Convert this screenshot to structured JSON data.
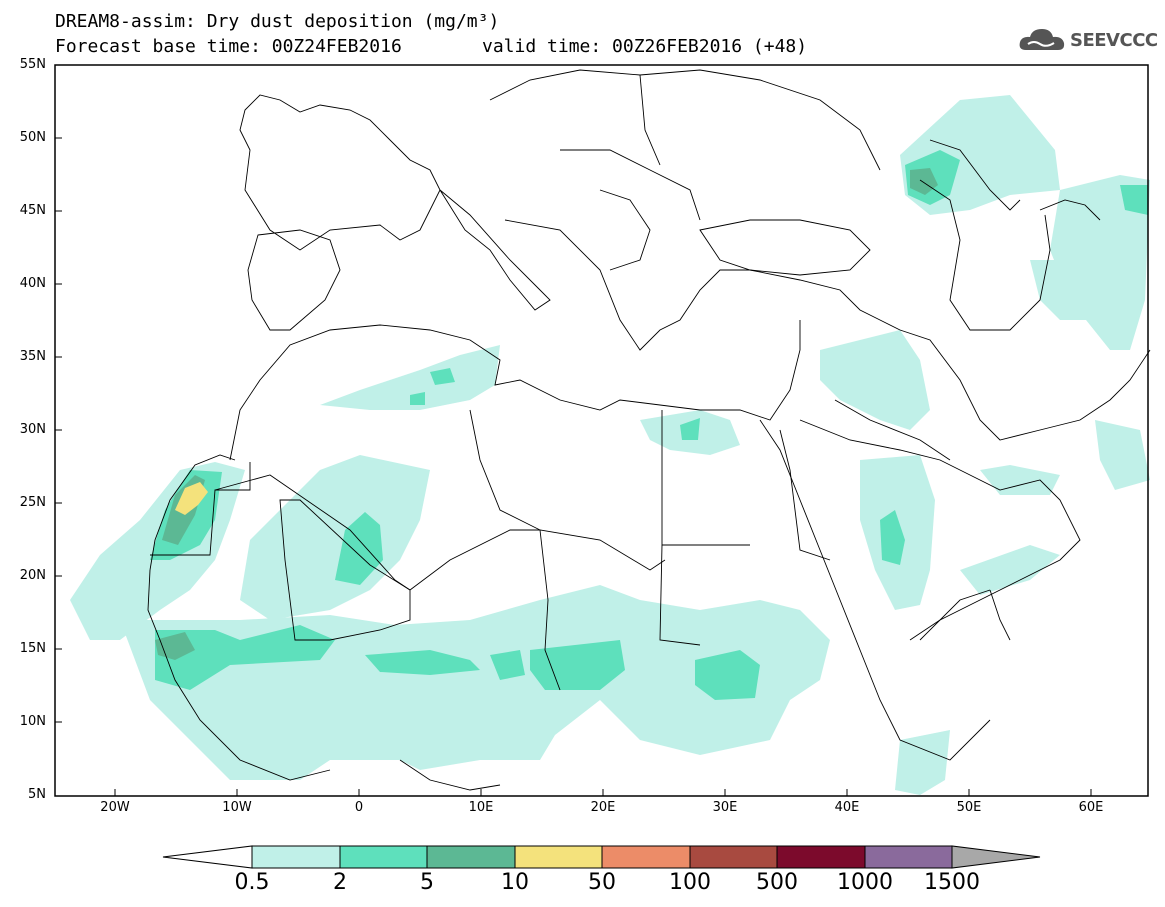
{
  "header": {
    "title_line1": "DREAM8-assim: Dry dust deposition (mg/m³)",
    "title_line2_base": "Forecast base time: 00Z24FEB2016",
    "title_line2_valid": "valid time: 00Z26FEB2016 (+48)"
  },
  "logo": {
    "text": "SEEVCCC",
    "icon": "cloud-icon"
  },
  "axes": {
    "lat_labels": [
      "55N",
      "50N",
      "45N",
      "40N",
      "35N",
      "30N",
      "25N",
      "20N",
      "15N",
      "10N",
      "5N"
    ],
    "lon_labels": [
      "20W",
      "10W",
      "0",
      "10E",
      "20E",
      "30E",
      "40E",
      "50E",
      "60E"
    ]
  },
  "colorbar": {
    "labels": [
      "0.5",
      "2",
      "5",
      "10",
      "50",
      "100",
      "500",
      "1000",
      "1500"
    ],
    "colors": [
      "#c0f0e8",
      "#5ee0bc",
      "#5cb894",
      "#f4e27c",
      "#ec8c68",
      "#a84a40",
      "#7c0a2c",
      "#8a6a9c",
      "#a8a8a8"
    ],
    "over_color": "#a8a8a8",
    "under_color": "#ffffff"
  },
  "map_colors": {
    "level1": "#c0f0e8",
    "level2": "#5ee0bc",
    "level3": "#5cb894",
    "level4": "#f4e27c"
  }
}
